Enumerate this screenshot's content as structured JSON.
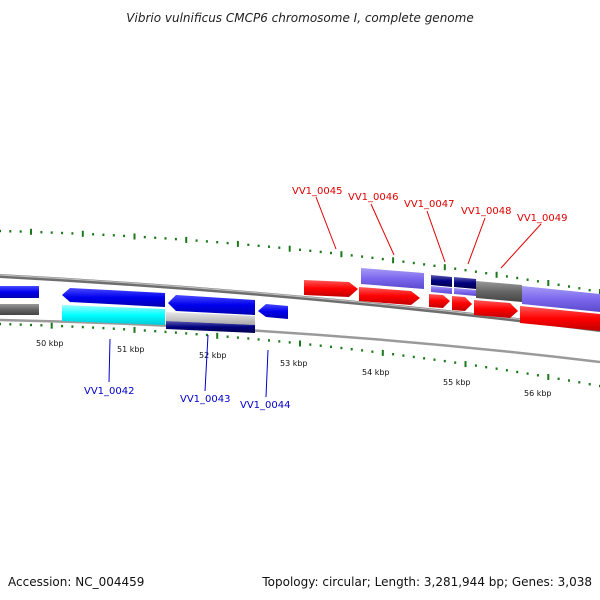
{
  "title": "Vibrio vulnificus CMCP6 chromosome I, complete genome",
  "footer": {
    "accession": "Accession: NC_004459",
    "summary": "Topology: circular; Length: 3,281,944 bp; Genes: 3,038"
  },
  "kbp_ticks": [
    "50 kbp",
    "51 kbp",
    "52 kbp",
    "53 kbp",
    "54 kbp",
    "55 kbp",
    "56 kbp"
  ],
  "gene_labels_top": [
    "VV1_0045",
    "VV1_0046",
    "VV1_0047",
    "VV1_0048",
    "VV1_0049"
  ],
  "gene_labels_bottom": [
    "VV1_0042",
    "VV1_0043",
    "VV1_0044"
  ],
  "colors": {
    "forward_gene": "#ff0000",
    "reverse_gene": "#0000ee",
    "forward_label": "#e00000",
    "reverse_label": "#0000cc",
    "purple_gene": "#7b68ee",
    "cyan_gene": "#00ffff",
    "navy_gene": "#000080",
    "gray_gene": "#666666",
    "backbone": "#888888",
    "tick_green": "#1a7a1a"
  }
}
